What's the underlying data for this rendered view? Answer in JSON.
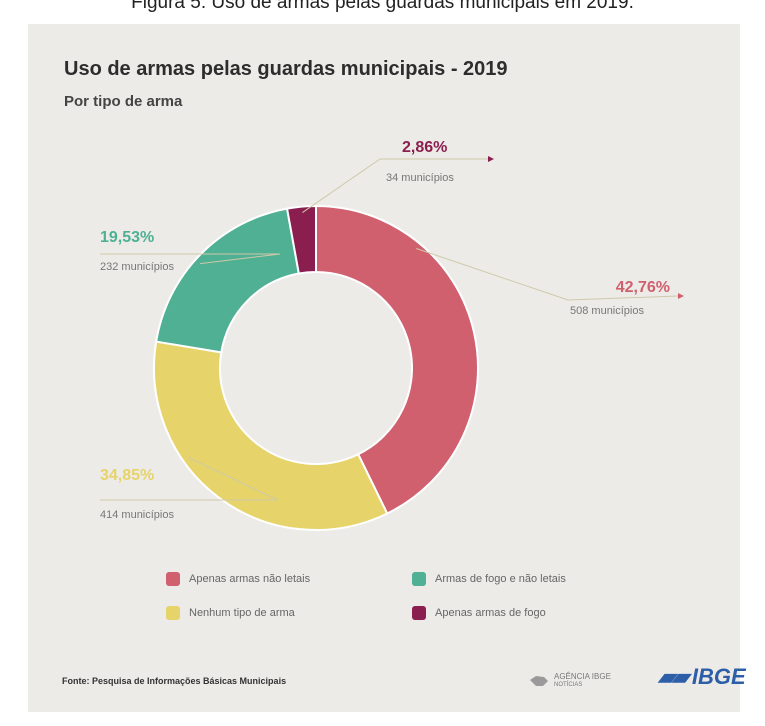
{
  "caption": "Figura 5: Uso de armas pelas guardas municipais em 2019.",
  "chart_data": {
    "type": "pie",
    "donut": true,
    "title": "Uso de armas pelas guardas municipais - 2019",
    "subtitle": "Por tipo de arma",
    "series": [
      {
        "name": "Apenas armas não letais",
        "percent_label": "42,76%",
        "percent": 42.76,
        "count_label": "508 municípios",
        "count": 508,
        "color": "#d0606e"
      },
      {
        "name": "Nenhum tipo de arma",
        "percent_label": "34,85%",
        "percent": 34.85,
        "count_label": "414 municípios",
        "count": 414,
        "color": "#e6d46a"
      },
      {
        "name": "Armas de fogo e não letais",
        "percent_label": "19,53%",
        "percent": 19.53,
        "count_label": "232 municípios",
        "count": 232,
        "color": "#4fb094"
      },
      {
        "name": "Apenas armas de fogo",
        "percent_label": "2,86%",
        "percent": 2.86,
        "count_label": "34 municípios",
        "count": 34,
        "color": "#8a1f4f"
      }
    ],
    "legend_placement": "bottom"
  },
  "source": "Fonte: Pesquisa de Informações Básicas Municipais",
  "logos": {
    "agencia": "AGÊNCIA IBGE",
    "agencia_sub": "NOTÍCIAS",
    "ibge": "IBGE"
  }
}
